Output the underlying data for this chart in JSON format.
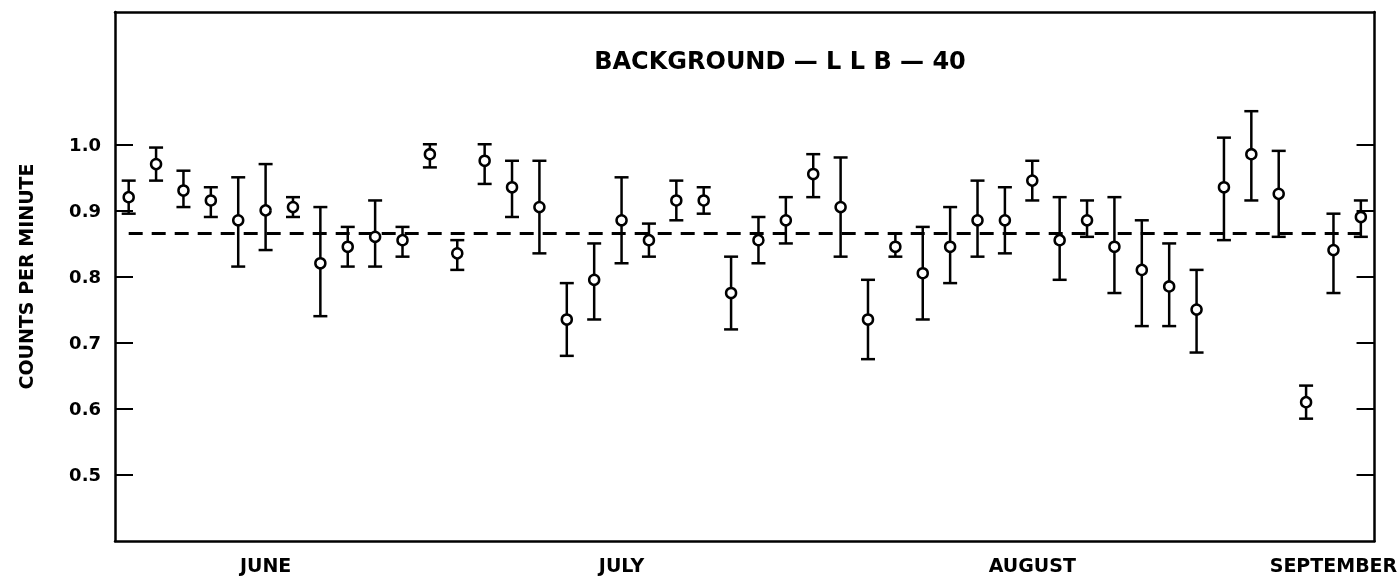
{
  "chart_data": {
    "type": "scatter",
    "title": "BACKGROUND — L L B — 40",
    "ylabel": "COUNTS PER MINUTE",
    "categories": [
      null,
      null,
      null,
      null,
      null,
      "JUNE",
      null,
      null,
      null,
      null,
      null,
      null,
      null,
      null,
      null,
      null,
      null,
      null,
      "JULY",
      null,
      null,
      null,
      null,
      null,
      null,
      null,
      null,
      null,
      null,
      null,
      null,
      null,
      null,
      "AUGUST",
      null,
      null,
      null,
      null,
      null,
      null,
      null,
      null,
      null,
      null,
      "SEPTEMBER",
      null
    ],
    "series": [
      {
        "color": "#000000",
        "values": [
          0.92,
          0.97,
          0.93,
          0.915,
          0.885,
          0.9,
          0.905,
          0.82,
          0.845,
          0.86,
          0.855,
          0.985,
          0.835,
          0.975,
          0.935,
          0.905,
          0.735,
          0.795,
          0.885,
          0.855,
          0.915,
          0.915,
          0.775,
          0.855,
          0.885,
          0.955,
          0.905,
          0.735,
          0.845,
          0.805,
          0.845,
          0.885,
          0.885,
          0.945,
          0.855,
          0.885,
          0.845,
          0.81,
          0.785,
          0.75,
          0.935,
          0.985,
          0.925,
          0.61,
          0.84,
          0.89
        ],
        "errors": [
          [
            0.895,
            0.945
          ],
          [
            0.945,
            0.995
          ],
          [
            0.905,
            0.96
          ],
          [
            0.89,
            0.935
          ],
          [
            0.815,
            0.95
          ],
          [
            0.84,
            0.97
          ],
          [
            0.89,
            0.92
          ],
          [
            0.74,
            0.905
          ],
          [
            0.815,
            0.875
          ],
          [
            0.815,
            0.915
          ],
          [
            0.83,
            0.875
          ],
          [
            0.965,
            1.0
          ],
          [
            0.81,
            0.855
          ],
          [
            0.94,
            1.0
          ],
          [
            0.89,
            0.975
          ],
          [
            0.835,
            0.975
          ],
          [
            0.68,
            0.79
          ],
          [
            0.735,
            0.85
          ],
          [
            0.82,
            0.95
          ],
          [
            0.83,
            0.88
          ],
          [
            0.885,
            0.945
          ],
          [
            0.895,
            0.935
          ],
          [
            0.72,
            0.83
          ],
          [
            0.82,
            0.89
          ],
          [
            0.85,
            0.92
          ],
          [
            0.92,
            0.985
          ],
          [
            0.83,
            0.98
          ],
          [
            0.675,
            0.795
          ],
          [
            0.83,
            0.865
          ],
          [
            0.735,
            0.875
          ],
          [
            0.79,
            0.905
          ],
          [
            0.83,
            0.945
          ],
          [
            0.835,
            0.935
          ],
          [
            0.915,
            0.975
          ],
          [
            0.795,
            0.92
          ],
          [
            0.86,
            0.915
          ],
          [
            0.775,
            0.92
          ],
          [
            0.725,
            0.885
          ],
          [
            0.725,
            0.85
          ],
          [
            0.685,
            0.81
          ],
          [
            0.855,
            1.01
          ],
          [
            0.915,
            1.05
          ],
          [
            0.86,
            0.99
          ],
          [
            0.585,
            0.635
          ],
          [
            0.775,
            0.895
          ],
          [
            0.86,
            0.915
          ]
        ]
      }
    ],
    "ylim": [
      0.4,
      1.2
    ],
    "yticks": [
      {
        "value": 0.5,
        "label": "0.5"
      },
      {
        "value": 0.6,
        "label": "0.6"
      },
      {
        "value": 0.7,
        "label": "0.7"
      },
      {
        "value": 0.8,
        "label": "0.8"
      },
      {
        "value": 0.9,
        "label": "0.9"
      },
      {
        "value": 1.0,
        "label": "1.0"
      }
    ],
    "ref_lines": [
      {
        "axis": "y",
        "value": 0.865,
        "line_style": "dashed",
        "color": "#000000"
      }
    ],
    "marker": "circle",
    "grid": false
  }
}
